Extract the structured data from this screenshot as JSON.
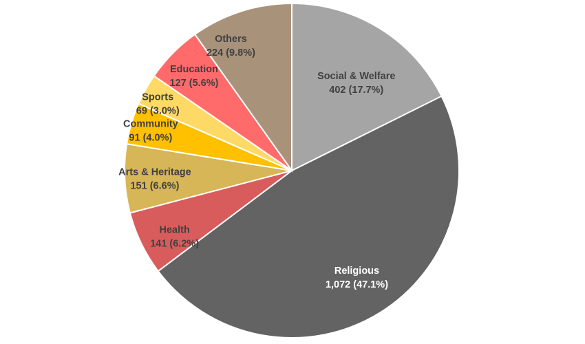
{
  "chart_data": {
    "type": "pie",
    "title": "",
    "slices": [
      {
        "label": "Social & Welfare",
        "value": 402,
        "percent": 17.7,
        "value_text": "402 (17.7%)",
        "color": "#A5A5A5",
        "text_color": "#404040"
      },
      {
        "label": "Religious",
        "value": 1072,
        "percent": 47.1,
        "value_text": "1,072  (47.1%)",
        "color": "#636363",
        "text_color": "#FFFFFF"
      },
      {
        "label": "Health",
        "value": 141,
        "percent": 6.2,
        "value_text": "141 (6.2%)",
        "color": "#D95C5C",
        "text_color": "#404040"
      },
      {
        "label": "Arts & Heritage",
        "value": 151,
        "percent": 6.6,
        "value_text": "151 (6.6%)",
        "color": "#D6B656",
        "text_color": "#404040"
      },
      {
        "label": "Community",
        "value": 91,
        "percent": 4.0,
        "value_text": "91 (4.0%)",
        "color": "#FFC000",
        "text_color": "#404040"
      },
      {
        "label": "Sports",
        "value": 69,
        "percent": 3.0,
        "value_text": "69 (3.0%)",
        "color": "#FFD966",
        "text_color": "#404040"
      },
      {
        "label": "Education",
        "value": 127,
        "percent": 5.6,
        "value_text": "127 (5.6%)",
        "color": "#FF6B6B",
        "text_color": "#404040"
      },
      {
        "label": "Others",
        "value": 224,
        "percent": 9.8,
        "value_text": "224 (9.8%)",
        "color": "#A8937A",
        "text_color": "#404040"
      }
    ],
    "start_angle": "top",
    "direction": "clockwise",
    "legend": "none"
  }
}
